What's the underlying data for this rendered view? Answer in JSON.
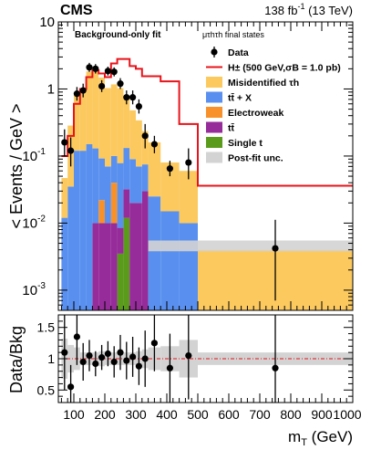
{
  "header": {
    "experiment": "CMS",
    "lumi_value": "138",
    "lumi_unit": "fb",
    "lumi_exp": "-1",
    "energy": "(13 TeV)"
  },
  "annotations": {
    "fit_label": "Background-only fit",
    "channel": "μτhτh final states"
  },
  "legend": [
    {
      "key": "data",
      "label": "Data",
      "style": "marker",
      "color": "#000000"
    },
    {
      "key": "signal",
      "label": "H± (500 GeV,σB = 1.0 pb)",
      "style": "line",
      "color": "#e8131a"
    },
    {
      "key": "misid",
      "label": "Misidentified τh",
      "style": "fill",
      "color": "#fcc95f"
    },
    {
      "key": "ttx",
      "label": "tt̄ + X",
      "style": "fill",
      "color": "#5990ef"
    },
    {
      "key": "ew",
      "label": "Electroweak",
      "style": "fill",
      "color": "#f9912a"
    },
    {
      "key": "tt",
      "label": "tt̄",
      "style": "fill",
      "color": "#962c99"
    },
    {
      "key": "singlet",
      "label": "Single t",
      "style": "fill",
      "color": "#5a9b1b"
    },
    {
      "key": "unc",
      "label": "Post-fit unc.",
      "style": "fill",
      "color": "#d3d3d3"
    }
  ],
  "chart_data": [
    {
      "type": "bar",
      "stacked": true,
      "ylabel": "< Events / GeV >",
      "y_scale": "log",
      "ylim": [
        0.0005,
        10
      ],
      "xlim": [
        50,
        1000
      ],
      "y_ticks": [
        {
          "value": 0.001,
          "label": "10",
          "exp": "-3"
        },
        {
          "value": 0.01,
          "label": "10",
          "exp": "-2"
        },
        {
          "value": 0.1,
          "label": "10",
          "exp": "-1"
        },
        {
          "value": 1,
          "label": "1",
          "exp": ""
        },
        {
          "value": 10,
          "label": "10",
          "exp": ""
        }
      ],
      "bin_edges": [
        60,
        80,
        100,
        120,
        140,
        160,
        180,
        200,
        220,
        240,
        260,
        280,
        300,
        320,
        340,
        380,
        440,
        500,
        1000
      ],
      "series": [
        {
          "key": "singlet",
          "values": [
            0,
            0,
            0,
            0,
            0,
            0,
            0,
            0,
            0,
            0.0035,
            0.012,
            0,
            0,
            0,
            0,
            0,
            0,
            0
          ]
        },
        {
          "key": "tt",
          "values": [
            0,
            0,
            0,
            0,
            0,
            0.01,
            0.01,
            0.01,
            0.01,
            0.005,
            0.02,
            0.02,
            0.02,
            0.03,
            0,
            0,
            0,
            0
          ]
        },
        {
          "key": "ew",
          "values": [
            0,
            0,
            0,
            0,
            0,
            0,
            0.012,
            0,
            0.03,
            0,
            0,
            0,
            0,
            0,
            0,
            0,
            0,
            0
          ]
        },
        {
          "key": "ttx",
          "values": [
            0.012,
            0.035,
            0.12,
            0.12,
            0.15,
            0.12,
            0.07,
            0.06,
            0.06,
            0.07,
            0.1,
            0.07,
            0.05,
            0.045,
            0.025,
            0.015,
            0.01,
            0.0005
          ]
        },
        {
          "key": "misid",
          "values": [
            0.035,
            0.25,
            0.72,
            0.78,
            1.68,
            1.74,
            1.39,
            0.96,
            1.07,
            0.95,
            0.66,
            0.39,
            0.27,
            0.16,
            0.135,
            0.065,
            0.05,
            0.0035
          ]
        }
      ],
      "signal": {
        "key": "signal",
        "values": [
          0.1,
          0.2,
          0.6,
          1.0,
          1.5,
          1.9,
          1.7,
          1.5,
          2.4,
          2.8,
          2.8,
          2.2,
          2.0,
          1.55,
          1.55,
          1.3,
          0.3,
          0.036
        ]
      },
      "data": {
        "x": [
          70,
          90,
          110,
          130,
          150,
          170,
          190,
          210,
          230,
          250,
          270,
          290,
          310,
          330,
          360,
          410,
          470,
          750
        ],
        "y": [
          0.16,
          0.12,
          0.85,
          0.95,
          2.1,
          2.0,
          1.1,
          1.85,
          1.8,
          1.2,
          0.75,
          0.75,
          0.55,
          0.2,
          0.15,
          0.065,
          0.08,
          0.0042
        ],
        "yerr_up": [
          0.09,
          0.07,
          0.22,
          0.25,
          0.35,
          0.35,
          0.25,
          0.3,
          0.3,
          0.25,
          0.2,
          0.2,
          0.15,
          0.1,
          0.05,
          0.02,
          0.05,
          0.007
        ],
        "yerr_down": [
          0.06,
          0.05,
          0.18,
          0.2,
          0.3,
          0.3,
          0.2,
          0.26,
          0.26,
          0.2,
          0.16,
          0.16,
          0.12,
          0.07,
          0.04,
          0.015,
          0.035,
          0.0035
        ]
      },
      "unc_band": {
        "x": [
          340,
          1000
        ],
        "low": [
          0.0038,
          0.0038
        ],
        "high": [
          0.0055,
          0.0055
        ]
      }
    },
    {
      "type": "scatter",
      "ylabel": "Data/Bkg",
      "xlabel": "mT (GeV)",
      "xlabel_main": "m",
      "xlabel_sub": "T",
      "xlabel_unit": " (GeV)",
      "xlim": [
        50,
        1000
      ],
      "ylim": [
        0.3,
        1.7
      ],
      "x_ticks": [
        "100",
        "200",
        "300",
        "400",
        "500",
        "600",
        "700",
        "800",
        "900",
        "1000"
      ],
      "y_ticks": [
        "0.5",
        "1",
        "1.5"
      ],
      "reference": 1,
      "x": [
        70,
        90,
        110,
        130,
        150,
        170,
        190,
        210,
        230,
        250,
        270,
        290,
        310,
        330,
        360,
        410,
        470,
        750
      ],
      "y": [
        1.1,
        0.55,
        1.35,
        0.95,
        1.05,
        0.92,
        1.02,
        1.08,
        0.95,
        1.1,
        0.97,
        1.03,
        0.88,
        1.0,
        1.25,
        0.85,
        1.05,
        0.85
      ],
      "yerr": [
        0.6,
        0.35,
        0.45,
        0.3,
        0.25,
        0.2,
        0.2,
        0.2,
        0.25,
        0.28,
        0.3,
        0.32,
        0.3,
        0.45,
        0.45,
        0.55,
        0.7,
        1.2
      ],
      "band_halfwidth": [
        0.32,
        0.22,
        0.18,
        0.1,
        0.1,
        0.1,
        0.12,
        0.1,
        0.1,
        0.1,
        0.1,
        0.1,
        0.12,
        0.15,
        0.18,
        0.2,
        0.3,
        0.1
      ]
    }
  ]
}
